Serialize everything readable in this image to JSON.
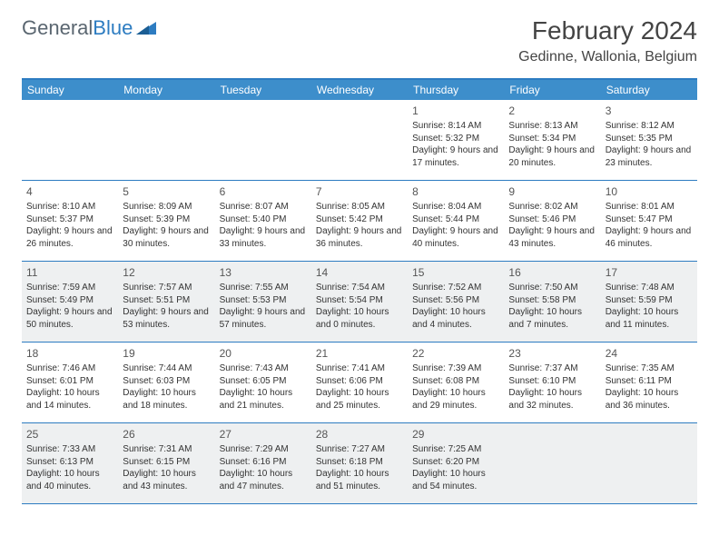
{
  "logo": {
    "text_gray": "General",
    "text_blue": "Blue"
  },
  "title": "February 2024",
  "location": "Gedinne, Wallonia, Belgium",
  "colors": {
    "header_bg": "#3d8ecb",
    "border": "#2d7cc1",
    "shaded_bg": "#eef0f1",
    "text": "#333333",
    "logo_gray": "#5a6670",
    "logo_blue": "#2d7cc1"
  },
  "weekdays": [
    "Sunday",
    "Monday",
    "Tuesday",
    "Wednesday",
    "Thursday",
    "Friday",
    "Saturday"
  ],
  "weeks": [
    [
      {
        "blank": true
      },
      {
        "blank": true
      },
      {
        "blank": true
      },
      {
        "blank": true
      },
      {
        "num": "1",
        "sunrise": "Sunrise: 8:14 AM",
        "sunset": "Sunset: 5:32 PM",
        "daylight": "Daylight: 9 hours and 17 minutes."
      },
      {
        "num": "2",
        "sunrise": "Sunrise: 8:13 AM",
        "sunset": "Sunset: 5:34 PM",
        "daylight": "Daylight: 9 hours and 20 minutes."
      },
      {
        "num": "3",
        "sunrise": "Sunrise: 8:12 AM",
        "sunset": "Sunset: 5:35 PM",
        "daylight": "Daylight: 9 hours and 23 minutes."
      }
    ],
    [
      {
        "num": "4",
        "sunrise": "Sunrise: 8:10 AM",
        "sunset": "Sunset: 5:37 PM",
        "daylight": "Daylight: 9 hours and 26 minutes."
      },
      {
        "num": "5",
        "sunrise": "Sunrise: 8:09 AM",
        "sunset": "Sunset: 5:39 PM",
        "daylight": "Daylight: 9 hours and 30 minutes."
      },
      {
        "num": "6",
        "sunrise": "Sunrise: 8:07 AM",
        "sunset": "Sunset: 5:40 PM",
        "daylight": "Daylight: 9 hours and 33 minutes."
      },
      {
        "num": "7",
        "sunrise": "Sunrise: 8:05 AM",
        "sunset": "Sunset: 5:42 PM",
        "daylight": "Daylight: 9 hours and 36 minutes."
      },
      {
        "num": "8",
        "sunrise": "Sunrise: 8:04 AM",
        "sunset": "Sunset: 5:44 PM",
        "daylight": "Daylight: 9 hours and 40 minutes."
      },
      {
        "num": "9",
        "sunrise": "Sunrise: 8:02 AM",
        "sunset": "Sunset: 5:46 PM",
        "daylight": "Daylight: 9 hours and 43 minutes."
      },
      {
        "num": "10",
        "sunrise": "Sunrise: 8:01 AM",
        "sunset": "Sunset: 5:47 PM",
        "daylight": "Daylight: 9 hours and 46 minutes."
      }
    ],
    [
      {
        "num": "11",
        "shaded": true,
        "sunrise": "Sunrise: 7:59 AM",
        "sunset": "Sunset: 5:49 PM",
        "daylight": "Daylight: 9 hours and 50 minutes."
      },
      {
        "num": "12",
        "shaded": true,
        "sunrise": "Sunrise: 7:57 AM",
        "sunset": "Sunset: 5:51 PM",
        "daylight": "Daylight: 9 hours and 53 minutes."
      },
      {
        "num": "13",
        "shaded": true,
        "sunrise": "Sunrise: 7:55 AM",
        "sunset": "Sunset: 5:53 PM",
        "daylight": "Daylight: 9 hours and 57 minutes."
      },
      {
        "num": "14",
        "shaded": true,
        "sunrise": "Sunrise: 7:54 AM",
        "sunset": "Sunset: 5:54 PM",
        "daylight": "Daylight: 10 hours and 0 minutes."
      },
      {
        "num": "15",
        "shaded": true,
        "sunrise": "Sunrise: 7:52 AM",
        "sunset": "Sunset: 5:56 PM",
        "daylight": "Daylight: 10 hours and 4 minutes."
      },
      {
        "num": "16",
        "shaded": true,
        "sunrise": "Sunrise: 7:50 AM",
        "sunset": "Sunset: 5:58 PM",
        "daylight": "Daylight: 10 hours and 7 minutes."
      },
      {
        "num": "17",
        "shaded": true,
        "sunrise": "Sunrise: 7:48 AM",
        "sunset": "Sunset: 5:59 PM",
        "daylight": "Daylight: 10 hours and 11 minutes."
      }
    ],
    [
      {
        "num": "18",
        "sunrise": "Sunrise: 7:46 AM",
        "sunset": "Sunset: 6:01 PM",
        "daylight": "Daylight: 10 hours and 14 minutes."
      },
      {
        "num": "19",
        "sunrise": "Sunrise: 7:44 AM",
        "sunset": "Sunset: 6:03 PM",
        "daylight": "Daylight: 10 hours and 18 minutes."
      },
      {
        "num": "20",
        "sunrise": "Sunrise: 7:43 AM",
        "sunset": "Sunset: 6:05 PM",
        "daylight": "Daylight: 10 hours and 21 minutes."
      },
      {
        "num": "21",
        "sunrise": "Sunrise: 7:41 AM",
        "sunset": "Sunset: 6:06 PM",
        "daylight": "Daylight: 10 hours and 25 minutes."
      },
      {
        "num": "22",
        "sunrise": "Sunrise: 7:39 AM",
        "sunset": "Sunset: 6:08 PM",
        "daylight": "Daylight: 10 hours and 29 minutes."
      },
      {
        "num": "23",
        "sunrise": "Sunrise: 7:37 AM",
        "sunset": "Sunset: 6:10 PM",
        "daylight": "Daylight: 10 hours and 32 minutes."
      },
      {
        "num": "24",
        "sunrise": "Sunrise: 7:35 AM",
        "sunset": "Sunset: 6:11 PM",
        "daylight": "Daylight: 10 hours and 36 minutes."
      }
    ],
    [
      {
        "num": "25",
        "shaded": true,
        "sunrise": "Sunrise: 7:33 AM",
        "sunset": "Sunset: 6:13 PM",
        "daylight": "Daylight: 10 hours and 40 minutes."
      },
      {
        "num": "26",
        "shaded": true,
        "sunrise": "Sunrise: 7:31 AM",
        "sunset": "Sunset: 6:15 PM",
        "daylight": "Daylight: 10 hours and 43 minutes."
      },
      {
        "num": "27",
        "shaded": true,
        "sunrise": "Sunrise: 7:29 AM",
        "sunset": "Sunset: 6:16 PM",
        "daylight": "Daylight: 10 hours and 47 minutes."
      },
      {
        "num": "28",
        "shaded": true,
        "sunrise": "Sunrise: 7:27 AM",
        "sunset": "Sunset: 6:18 PM",
        "daylight": "Daylight: 10 hours and 51 minutes."
      },
      {
        "num": "29",
        "shaded": true,
        "sunrise": "Sunrise: 7:25 AM",
        "sunset": "Sunset: 6:20 PM",
        "daylight": "Daylight: 10 hours and 54 minutes."
      },
      {
        "blank": true,
        "shaded": true
      },
      {
        "blank": true,
        "shaded": true
      }
    ]
  ]
}
